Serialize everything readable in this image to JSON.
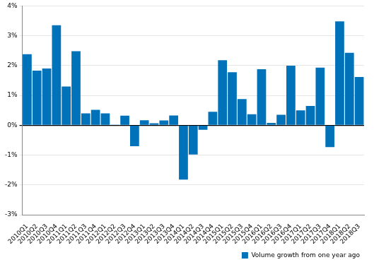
{
  "chart_data": {
    "type": "bar",
    "categories": [
      "2010Q1",
      "2010Q2",
      "2010Q3",
      "2010Q4",
      "2011Q1",
      "2011Q2",
      "2011Q3",
      "2011Q4",
      "2012Q1",
      "2012Q2",
      "2012Q3",
      "2012Q4",
      "2013Q1",
      "2013Q2",
      "2013Q3",
      "2013Q4",
      "2014Q1",
      "2014Q2",
      "2014Q3",
      "2014Q4",
      "2015Q1",
      "2015Q2",
      "2015Q3",
      "2015Q4",
      "2016Q1",
      "2016Q2",
      "2016Q3",
      "2016Q4",
      "2017Q1",
      "2017Q2",
      "2017Q3",
      "2017Q4",
      "2018Q1",
      "2018Q2",
      "2018Q3"
    ],
    "series": [
      {
        "name": "Volume growth from one year ago",
        "color": "#0072b9",
        "values": [
          2.38,
          1.83,
          1.9,
          3.35,
          1.3,
          2.48,
          0.4,
          0.52,
          0.4,
          0.02,
          0.32,
          -0.7,
          0.17,
          0.07,
          0.16,
          0.33,
          -1.82,
          -0.98,
          -0.15,
          0.45,
          2.18,
          1.78,
          0.88,
          0.37,
          1.88,
          0.08,
          0.35,
          2.0,
          0.5,
          0.65,
          1.93,
          -0.73,
          3.48,
          2.43,
          1.62
        ]
      }
    ],
    "ylim": [
      -3,
      4
    ],
    "yticks": [
      {
        "value": -3,
        "label": "-3%"
      },
      {
        "value": -2,
        "label": "-2%"
      },
      {
        "value": -1,
        "label": "-1%"
      },
      {
        "value": 0,
        "label": "0%"
      },
      {
        "value": 1,
        "label": "1%"
      },
      {
        "value": 2,
        "label": "2%"
      },
      {
        "value": 3,
        "label": "3%"
      },
      {
        "value": 4,
        "label": "4%"
      }
    ],
    "grid": true,
    "legend": "bottom-right"
  }
}
